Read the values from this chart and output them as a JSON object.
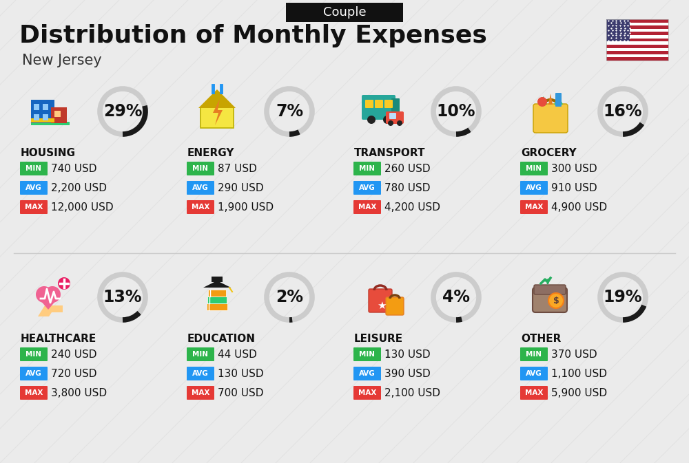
{
  "title": "Distribution of Monthly Expenses",
  "subtitle": "New Jersey",
  "label_couple": "Couple",
  "bg_color": "#ebebeb",
  "categories": [
    {
      "name": "HOUSING",
      "percent": 29,
      "min_val": "740 USD",
      "avg_val": "2,200 USD",
      "max_val": "12,000 USD",
      "row": 0,
      "col": 0
    },
    {
      "name": "ENERGY",
      "percent": 7,
      "min_val": "87 USD",
      "avg_val": "290 USD",
      "max_val": "1,900 USD",
      "row": 0,
      "col": 1
    },
    {
      "name": "TRANSPORT",
      "percent": 10,
      "min_val": "260 USD",
      "avg_val": "780 USD",
      "max_val": "4,200 USD",
      "row": 0,
      "col": 2
    },
    {
      "name": "GROCERY",
      "percent": 16,
      "min_val": "300 USD",
      "avg_val": "910 USD",
      "max_val": "4,900 USD",
      "row": 0,
      "col": 3
    },
    {
      "name": "HEALTHCARE",
      "percent": 13,
      "min_val": "240 USD",
      "avg_val": "720 USD",
      "max_val": "3,800 USD",
      "row": 1,
      "col": 0
    },
    {
      "name": "EDUCATION",
      "percent": 2,
      "min_val": "44 USD",
      "avg_val": "130 USD",
      "max_val": "700 USD",
      "row": 1,
      "col": 1
    },
    {
      "name": "LEISURE",
      "percent": 4,
      "min_val": "130 USD",
      "avg_val": "390 USD",
      "max_val": "2,100 USD",
      "row": 1,
      "col": 2
    },
    {
      "name": "OTHER",
      "percent": 19,
      "min_val": "370 USD",
      "avg_val": "1,100 USD",
      "max_val": "5,900 USD",
      "row": 1,
      "col": 3
    }
  ],
  "min_color": "#2db44b",
  "avg_color": "#2196f3",
  "max_color": "#e53935",
  "badge_color": "#111111",
  "badge_text_color": "#ffffff",
  "title_fontsize": 26,
  "subtitle_fontsize": 15,
  "cat_fontsize": 11,
  "val_fontsize": 11,
  "pct_fontsize": 17
}
